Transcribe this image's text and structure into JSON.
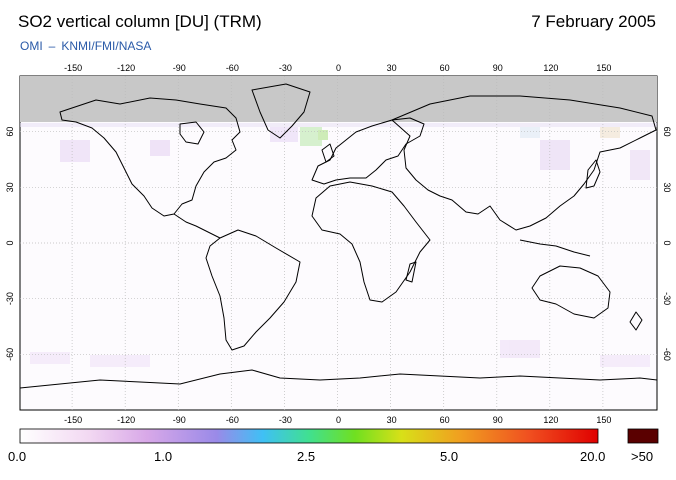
{
  "header": {
    "title": "SO2 vertical column [DU] (TRM)",
    "date": "7 February 2005",
    "credit_left": "OMI",
    "credit_dash": "–",
    "credit_right": "KNMI/FMI/NASA"
  },
  "map": {
    "type": "world-map",
    "projection": "equirectangular",
    "lon_range": [
      -180,
      180
    ],
    "lat_range": [
      -90,
      90
    ],
    "lon_ticks": [
      "-150",
      "-120",
      "-90",
      "-60",
      "-30",
      "0",
      "30",
      "60",
      "90",
      "120",
      "150"
    ],
    "lat_ticks": [
      "60",
      "30",
      "0",
      "-30",
      "-60"
    ],
    "no_data_region": "polar night north of ~65N (grey)",
    "grid": true,
    "colors": {
      "no_data": "#c8c8c8",
      "coast": "#000000",
      "grid": "#bbbbbb"
    }
  },
  "colorbar": {
    "labels": [
      "0.0",
      "1.0",
      "2.5",
      "5.0",
      "20.0"
    ],
    "overflow_label": ">50",
    "overflow_color": "#5a0000"
  }
}
